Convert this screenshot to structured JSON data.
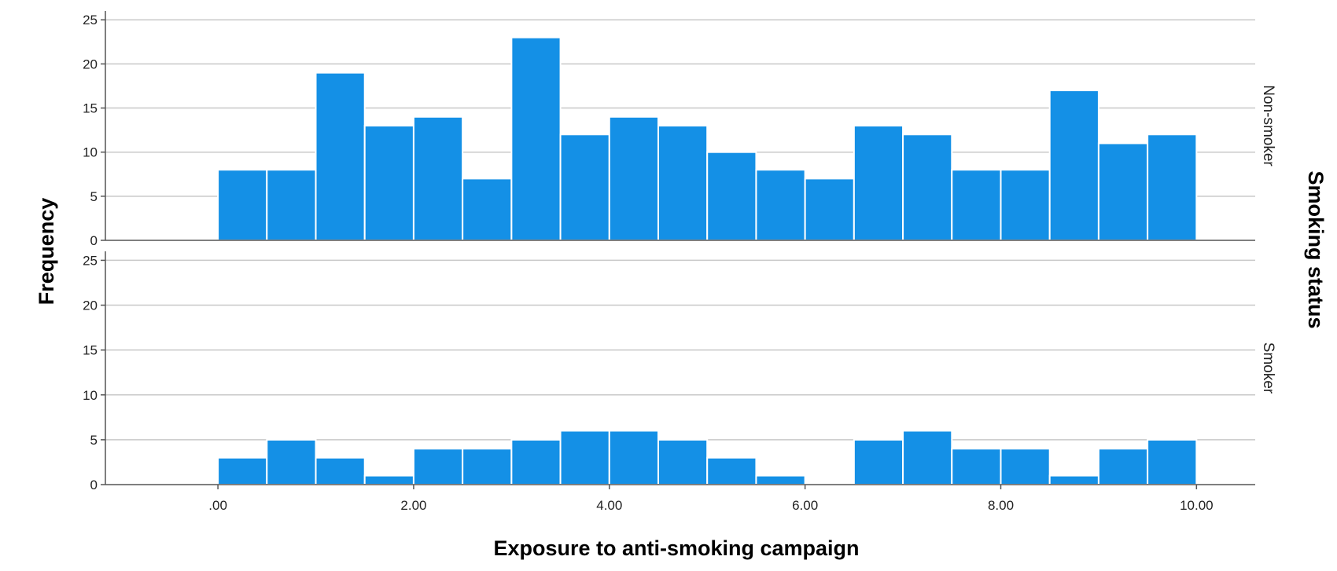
{
  "chart_data": {
    "type": "bar",
    "xlabel": "Exposure to anti-smoking campaign",
    "ylabel": "Frequency",
    "facet_label": "Smoking status",
    "bin_width": 0.5,
    "bin_starts": [
      0,
      0.5,
      1,
      1.5,
      2,
      2.5,
      3,
      3.5,
      4,
      4.5,
      5,
      5.5,
      6,
      6.5,
      7,
      7.5,
      8,
      8.5,
      9,
      9.5
    ],
    "x_ticks": [
      ".00",
      "2.00",
      "4.00",
      "6.00",
      "8.00",
      "10.00"
    ],
    "x_tick_values": [
      0,
      2,
      4,
      6,
      8,
      10
    ],
    "xlim": [
      -1.15,
      10.6
    ],
    "y_ticks": [
      0,
      5,
      10,
      15,
      20,
      25
    ],
    "ylim": [
      0,
      26
    ],
    "grid": true,
    "bar_color": "#1490E6",
    "series": [
      {
        "name": "Non-smoker",
        "values": [
          8,
          8,
          19,
          13,
          14,
          7,
          23,
          12,
          14,
          13,
          10,
          8,
          7,
          13,
          12,
          8,
          8,
          17,
          11,
          12
        ]
      },
      {
        "name": "Smoker",
        "values": [
          3,
          5,
          3,
          1,
          4,
          4,
          5,
          6,
          6,
          5,
          3,
          1,
          0,
          5,
          6,
          4,
          4,
          1,
          4,
          5
        ]
      }
    ]
  }
}
